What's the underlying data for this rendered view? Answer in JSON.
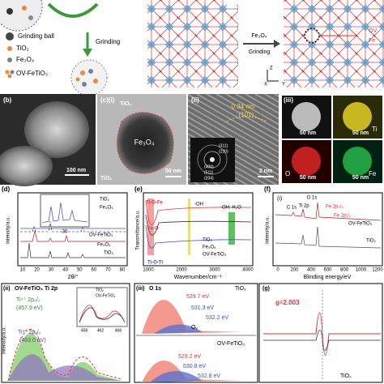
{
  "schematic": {
    "grinding_ball": "Grinding ball",
    "tio2": "TiO₂",
    "fe3o4": "Fe₃O₄",
    "product": "OV-FeTiO₃",
    "grinding": "Grinding"
  },
  "crystal": {
    "reactant": "Fe₃O₄",
    "grinding": "Grinding",
    "ov": "OV",
    "fe": "Fe",
    "axis_x": "X",
    "axis_y": "Y",
    "axis_z": "Z"
  },
  "panel_b": {
    "label": "(b)",
    "scale": "100 nm"
  },
  "panel_c1": {
    "label": "(c)(i)",
    "tio2_top": "TiO₂",
    "core": "Fe₃O₄",
    "tio2_bottom": "TiO₂",
    "scale": "50 nm"
  },
  "panel_c2": {
    "label": "(ii)",
    "spacing": "0.34 nm",
    "plane": "(101)",
    "saed": [
      "(311)",
      "(220)",
      "(400)",
      "(511)",
      "(204)"
    ],
    "scale": "2 nm"
  },
  "panel_c3": {
    "label": "(iii)",
    "scales": [
      "50 nm",
      "50 nm",
      "50 nm",
      "50 nm"
    ],
    "elements": [
      "Ti",
      "O",
      "Fe"
    ]
  },
  "panel_d": {
    "label": "(d)",
    "legend": [
      "TiO₂",
      "Fe₃O₄"
    ],
    "inset_tick": "30",
    "traces": [
      "OV-FeTiO₃",
      "Fe₃O₄",
      "TiO₂"
    ],
    "xticks": [
      "10",
      "20",
      "30",
      "40",
      "50",
      "60",
      "70",
      "80"
    ],
    "xlabel": "2θ/°",
    "ylabel": "Intensity/a.u."
  },
  "panel_e": {
    "label": "(e)",
    "annotations": [
      "Ti-O-Fe",
      "-OH",
      "-OH, H₂O",
      "Fe-O",
      "Ti-O-Ti"
    ],
    "legend": [
      "TiO₂",
      "Fe₃O₄",
      "OV-FeTiO₃"
    ],
    "xticks": [
      "1000",
      "2000",
      "3000",
      "4000"
    ],
    "xlabel": "Wavenumber/cm⁻¹",
    "ylabel": "Transmittance/a.u."
  },
  "panel_f": {
    "label": "(f)",
    "sub": "(i)",
    "peaks": [
      "O 1s",
      "C 1s",
      "Ti 2p",
      "Fe 2p₃/₂",
      "Fe 2p₁/₂"
    ],
    "traces": [
      "OV-FeTiO₃",
      "TiO₂"
    ],
    "xticks": [
      "0",
      "200",
      "400",
      "600",
      "800",
      "1000",
      "1200"
    ],
    "xlabel": "Blinding energy/eV",
    "ylabel": "Intensity/a.u."
  },
  "panel_f2": {
    "label": "(ii)",
    "title": "OV-FeTiO₃ Ti 2p",
    "peak1": "Ti⁴⁺ 2p₃/₂",
    "peak1_energy": "(457.9 eV)",
    "peak2": "Ti³⁺ 2p₁/₂",
    "peak2_energy": "(463.0 eV)",
    "inset_legend": [
      "TiO₂",
      "OV-FeTiO₃"
    ],
    "inset_xticks": [
      "458",
      "462",
      "466"
    ],
    "ylabel": "Intensity/a.u."
  },
  "panel_f3": {
    "label": "(iii)",
    "title": "O 1s",
    "top_sample": "TiO₂",
    "top_peaks": [
      "529.7 eV",
      "531.3 eV",
      "532.2 eV"
    ],
    "ov": "Oᵥ",
    "bottom_sample": "OV-FeTiO₃",
    "bottom_peaks": [
      "529.2 eV",
      "530.8 eV",
      "532.8 eV"
    ]
  },
  "panel_g": {
    "label": "(g)",
    "g_value": "g=2.003",
    "legend": "TiO₂"
  }
}
